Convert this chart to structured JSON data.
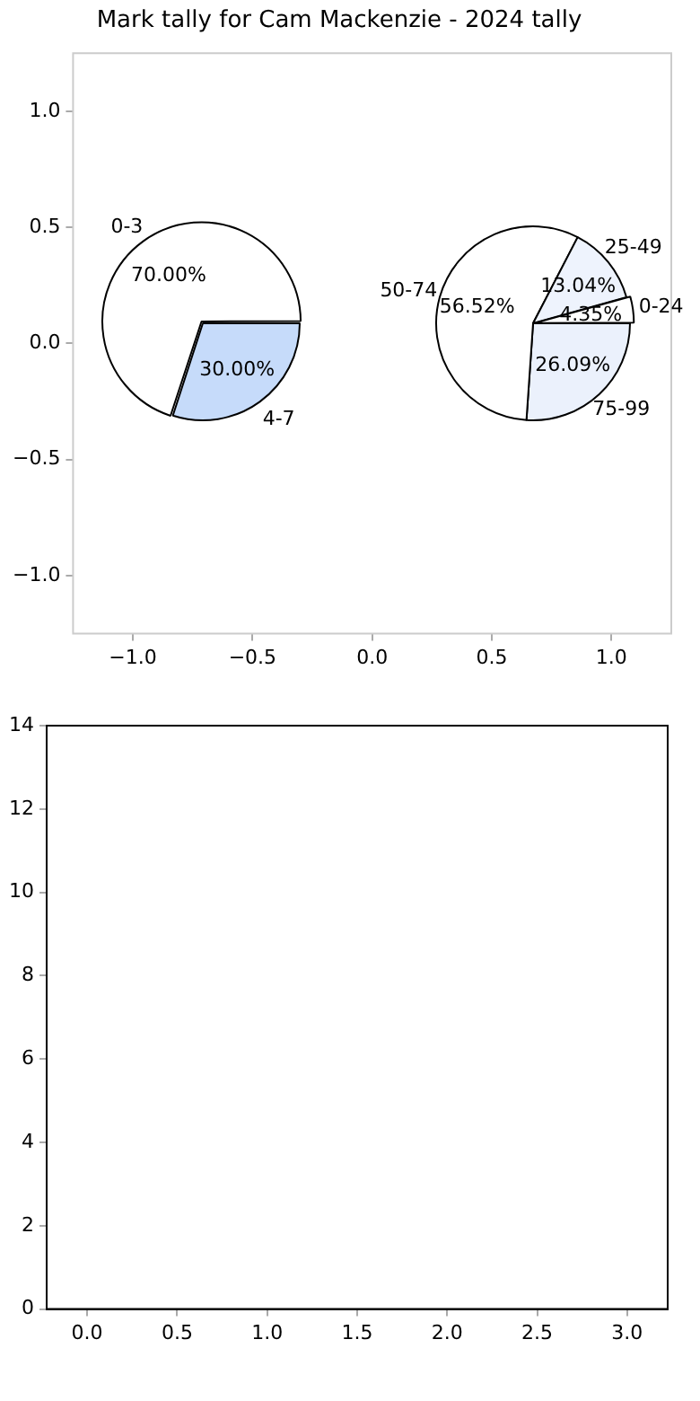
{
  "chart_data": [
    {
      "type": "scatter",
      "title": "Mark tally for Cam Mackenzie - 2024 tally",
      "xlim": [
        -1.25,
        1.25
      ],
      "ylim": [
        -1.25,
        1.25
      ],
      "xticks": [
        {
          "value": -1,
          "label": "−1.0"
        },
        {
          "value": -0.5,
          "label": "−0.5"
        },
        {
          "value": 0,
          "label": "0.0"
        },
        {
          "value": 0.5,
          "label": "0.5"
        },
        {
          "value": 1,
          "label": "1.0"
        }
      ],
      "yticks": [
        {
          "value": -1,
          "label": "−1.0"
        },
        {
          "value": -0.5,
          "label": "−0.5"
        },
        {
          "value": 0,
          "label": "0.0"
        },
        {
          "value": 0.5,
          "label": "0.5"
        },
        {
          "value": 1,
          "label": "1.0"
        }
      ],
      "legend": false
    },
    {
      "type": "pie",
      "categories": [
        "0-3",
        "4-7"
      ],
      "values": [
        70,
        30
      ],
      "colors": [
        "#ffffff",
        "#c6dbfa"
      ],
      "value_labels": [
        "70.00%",
        "30.00%"
      ],
      "legend": false
    },
    {
      "type": "pie",
      "categories": [
        "0-24",
        "25-49",
        "50-74",
        "75-99"
      ],
      "values": [
        4.35,
        13.04,
        56.52,
        26.09
      ],
      "colors": [
        "#ffffff",
        "#eef3fd",
        "#ffffff",
        "#ebf1fc"
      ],
      "value_labels": [
        "4.35%",
        "13.04%",
        "56.52%",
        "26.09%"
      ],
      "legend": false
    },
    {
      "type": "scatter",
      "xlim": [
        -0.225,
        3.225
      ],
      "ylim": [
        0,
        14
      ],
      "xticks": [
        {
          "value": 0,
          "label": "0.0"
        },
        {
          "value": 0.5,
          "label": "0.5"
        },
        {
          "value": 1,
          "label": "1.0"
        },
        {
          "value": 1.5,
          "label": "1.5"
        },
        {
          "value": 2,
          "label": "2.0"
        },
        {
          "value": 2.5,
          "label": "2.5"
        },
        {
          "value": 3,
          "label": "3.0"
        }
      ],
      "yticks": [
        0,
        2,
        4,
        6,
        8,
        10,
        12,
        14
      ]
    }
  ]
}
